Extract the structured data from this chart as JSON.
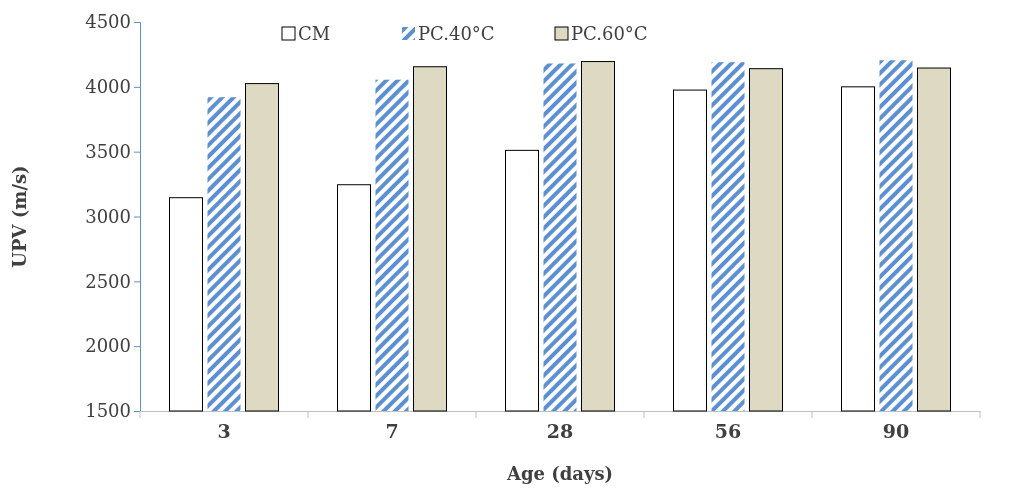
{
  "chart_data": {
    "type": "bar",
    "xlabel": "Age (days)",
    "ylabel": "UPV (m/s)",
    "categories": [
      "3",
      "7",
      "28",
      "56",
      "90"
    ],
    "series": [
      {
        "name": "CM",
        "color": "#ffffff",
        "values": [
          3145,
          3245,
          3510,
          3975,
          4000
        ]
      },
      {
        "name": "PC.40°C",
        "color": "#5b8fd6",
        "values": [
          3920,
          4055,
          4180,
          4190,
          4205
        ]
      },
      {
        "name": "PC.60°C",
        "color": "#ddd9c3",
        "values": [
          4025,
          4155,
          4195,
          4140,
          4145
        ]
      }
    ],
    "ylim": [
      1500,
      4500
    ],
    "yticks": [
      1500,
      2000,
      2500,
      3000,
      3500,
      4000,
      4500
    ],
    "grid": false,
    "legend": "top"
  }
}
